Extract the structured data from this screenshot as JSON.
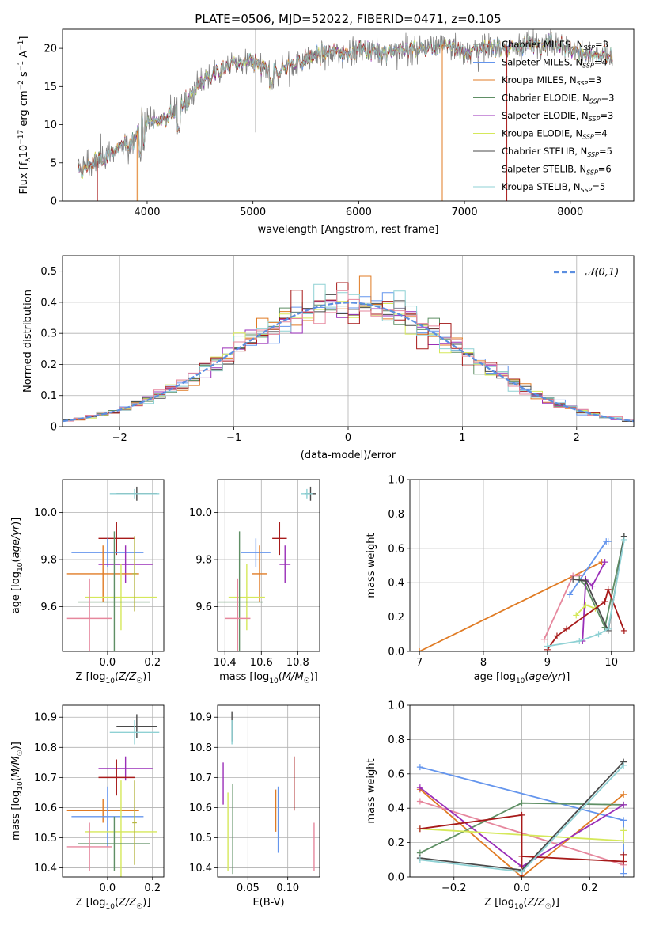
{
  "title": "PLATE=0506, MJD=52022, FIBERID=0471, z=0.105",
  "colors": {
    "blue": "#6495ed",
    "orange": "#e07b24",
    "green": "#5f8f65",
    "purple": "#9a2eb8",
    "lime": "#d5e85a",
    "dkgray": "#4a4a4a",
    "red": "#a71a1a",
    "cyan": "#8fd1d4",
    "pink": "#e6879d",
    "olive": "#b5b540",
    "gray": "#808080"
  },
  "chart_data": [
    {
      "id": "spectrum",
      "type": "line",
      "xlabel": "wavelength [Angstrom, rest frame]",
      "ylabel": "Flux [f_λ10^-17 erg cm^-2 s^-1 A^-1]",
      "xlim": [
        3200,
        8600
      ],
      "ylim": [
        0,
        22.5
      ],
      "xticks": [
        4000,
        5000,
        6000,
        7000,
        8000
      ],
      "yticks": [
        0,
        5,
        10,
        15,
        20
      ],
      "x_range": [
        3350,
        8400
      ],
      "continuum": [
        [
          3350,
          4.0
        ],
        [
          3500,
          5.0
        ],
        [
          3700,
          6.5
        ],
        [
          3850,
          7.5
        ],
        [
          3950,
          10.5
        ],
        [
          4100,
          10.5
        ],
        [
          4300,
          12.0
        ],
        [
          4500,
          15.5
        ],
        [
          4800,
          18.0
        ],
        [
          5000,
          18.2
        ],
        [
          5200,
          16.8
        ],
        [
          5400,
          18.0
        ],
        [
          5600,
          19.0
        ],
        [
          5800,
          19.5
        ],
        [
          6000,
          19.8
        ],
        [
          6300,
          19.5
        ],
        [
          6600,
          20.0
        ],
        [
          6800,
          20.5
        ],
        [
          7000,
          19.5
        ],
        [
          7200,
          20.0
        ],
        [
          7500,
          20.2
        ],
        [
          7800,
          21.0
        ],
        [
          8000,
          20.0
        ],
        [
          8200,
          19.0
        ],
        [
          8400,
          19.0
        ]
      ],
      "legend_loc": "upper right",
      "series": [
        {
          "name": "Chabrier MILES, N_SSP=3",
          "color_key": "gray"
        },
        {
          "name": "Salpeter MILES, N_SSP=4",
          "color_key": "blue"
        },
        {
          "name": "Kroupa MILES, N_SSP=3",
          "color_key": "orange"
        },
        {
          "name": "Chabrier ELODIE, N_SSP=3",
          "color_key": "green"
        },
        {
          "name": "Salpeter ELODIE, N_SSP=3",
          "color_key": "purple"
        },
        {
          "name": "Kroupa ELODIE, N_SSP=4",
          "color_key": "lime"
        },
        {
          "name": "Chabrier STELIB, N_SSP=5",
          "color_key": "dkgray"
        },
        {
          "name": "Salpeter STELIB, N_SSP=6",
          "color_key": "red"
        },
        {
          "name": "Kroupa STELIB, N_SSP=5",
          "color_key": "cyan"
        }
      ]
    },
    {
      "id": "residuals",
      "type": "histogram",
      "xlabel": "(data-model)/error",
      "ylabel": "Normed distribution",
      "xlim": [
        -2.5,
        2.5
      ],
      "ylim": [
        0,
        0.55
      ],
      "xticks": [
        -2,
        -1,
        0,
        1,
        2
      ],
      "yticks": [
        0.0,
        0.1,
        0.2,
        0.3,
        0.4,
        0.5
      ],
      "grid": true,
      "bin_width": 0.1,
      "legend": "𝒩(0,1)",
      "legend_loc": "upper right"
    },
    {
      "id": "age_vs_Z",
      "type": "errorbar",
      "xlabel": "Z [log10(Z/Z☉)]",
      "ylabel": "age  [log10(age/yr)]",
      "xlim": [
        -0.2,
        0.25
      ],
      "ylim": [
        9.41,
        10.14
      ],
      "xticks": [
        0.0,
        0.2
      ],
      "yticks": [
        9.6,
        9.8,
        10.0
      ],
      "grid": true,
      "points": [
        {
          "c": "dkgray",
          "x": 0.13,
          "xe": 0.09,
          "y": 10.08,
          "ye": 0.03
        },
        {
          "c": "cyan",
          "x": 0.12,
          "xe": 0.11,
          "y": 10.08,
          "ye": 0.02
        },
        {
          "c": "red",
          "x": 0.04,
          "xe": 0.08,
          "y": 9.89,
          "ye": 0.07
        },
        {
          "c": "blue",
          "x": 0.0,
          "xe": 0.16,
          "y": 9.83,
          "ye": 0.06
        },
        {
          "c": "purple",
          "x": 0.08,
          "xe": 0.12,
          "y": 9.78,
          "ye": 0.08
        },
        {
          "c": "orange",
          "x": -0.02,
          "xe": 0.16,
          "y": 9.74,
          "ye": 0.12
        },
        {
          "c": "lime",
          "x": 0.06,
          "xe": 0.16,
          "y": 9.64,
          "ye": 0.14
        },
        {
          "c": "green",
          "x": 0.03,
          "xe": 0.16,
          "y": 9.62,
          "ye": 0.3
        },
        {
          "c": "pink",
          "x": -0.08,
          "xe": 0.1,
          "y": 9.55,
          "ye": 0.17
        },
        {
          "c": "olive",
          "x": 0.12,
          "xe": 0.01,
          "y": 9.74,
          "ye": 0.16
        }
      ]
    },
    {
      "id": "age_vs_mass",
      "type": "errorbar",
      "xlabel": "mass [log10(M/M☉)]",
      "ylabel": "",
      "xlim": [
        10.36,
        10.92
      ],
      "ylim": [
        9.41,
        10.14
      ],
      "xticks": [
        10.4,
        10.6,
        10.8
      ],
      "yticks": [
        9.6,
        9.8,
        10.0
      ],
      "grid": true,
      "points": [
        {
          "c": "dkgray",
          "x": 10.87,
          "xe": 0.03,
          "y": 10.08,
          "ye": 0.03
        },
        {
          "c": "cyan",
          "x": 10.85,
          "xe": 0.03,
          "y": 10.08,
          "ye": 0.02
        },
        {
          "c": "red",
          "x": 10.7,
          "xe": 0.04,
          "y": 9.89,
          "ye": 0.07
        },
        {
          "c": "blue",
          "x": 10.57,
          "xe": 0.08,
          "y": 9.83,
          "ye": 0.06
        },
        {
          "c": "purple",
          "x": 10.73,
          "xe": 0.03,
          "y": 9.78,
          "ye": 0.08
        },
        {
          "c": "orange",
          "x": 10.59,
          "xe": 0.04,
          "y": 9.74,
          "ye": 0.12
        },
        {
          "c": "lime",
          "x": 10.52,
          "xe": 0.1,
          "y": 9.64,
          "ye": 0.14
        },
        {
          "c": "green",
          "x": 10.48,
          "xe": 0.13,
          "y": 9.62,
          "ye": 0.3
        },
        {
          "c": "pink",
          "x": 10.47,
          "xe": 0.07,
          "y": 9.55,
          "ye": 0.17
        }
      ]
    },
    {
      "id": "weight_vs_age",
      "type": "line",
      "xlabel": "age  [log10(age/yr)]",
      "ylabel": "mass weight",
      "xlim": [
        6.85,
        10.35
      ],
      "ylim": [
        0,
        1
      ],
      "xticks": [
        7,
        8,
        9,
        10
      ],
      "yticks": [
        0.0,
        0.2,
        0.4,
        0.6,
        0.8,
        1.0
      ],
      "grid": true,
      "series": [
        {
          "c": "orange",
          "x": [
            7.0,
            9.85
          ],
          "y": [
            0.0,
            0.52
          ]
        },
        {
          "c": "blue",
          "x": [
            9.35,
            9.92,
            9.95
          ],
          "y": [
            0.33,
            0.64,
            0.64
          ]
        },
        {
          "c": "pink",
          "x": [
            8.95,
            9.4,
            9.5
          ],
          "y": [
            0.07,
            0.44,
            0.44
          ]
        },
        {
          "c": "green",
          "x": [
            9.5,
            9.6,
            9.9,
            10.2
          ],
          "y": [
            0.42,
            0.38,
            0.14,
            0.67
          ]
        },
        {
          "c": "purple",
          "x": [
            9.55,
            9.6,
            9.7,
            9.9
          ],
          "y": [
            0.06,
            0.42,
            0.38,
            0.52
          ]
        },
        {
          "c": "lime",
          "x": [
            9.45,
            9.6,
            9.75
          ],
          "y": [
            0.21,
            0.27,
            0.25
          ]
        },
        {
          "c": "dkgray",
          "x": [
            9.4,
            9.6,
            9.95,
            10.2
          ],
          "y": [
            0.42,
            0.41,
            0.12,
            0.67
          ]
        },
        {
          "c": "red",
          "x": [
            9.0,
            9.15,
            9.3,
            9.9,
            9.95,
            10.2
          ],
          "y": [
            0.01,
            0.09,
            0.13,
            0.29,
            0.36,
            0.12
          ]
        },
        {
          "c": "cyan",
          "x": [
            9.0,
            9.5,
            9.8,
            9.95,
            10.2
          ],
          "y": [
            0.03,
            0.06,
            0.1,
            0.13,
            0.65
          ]
        }
      ]
    },
    {
      "id": "mass_vs_Z",
      "type": "errorbar",
      "xlabel": "Z [log10(Z/Z☉)]",
      "ylabel": "mass [log10(M/M☉)]",
      "xlim": [
        -0.2,
        0.25
      ],
      "ylim": [
        10.37,
        10.94
      ],
      "xticks": [
        0.0,
        0.2
      ],
      "yticks": [
        10.4,
        10.5,
        10.6,
        10.7,
        10.8,
        10.9
      ],
      "grid": true,
      "points": [
        {
          "c": "dkgray",
          "x": 0.13,
          "xe": 0.09,
          "y": 10.87,
          "ye": 0.04
        },
        {
          "c": "cyan",
          "x": 0.12,
          "xe": 0.11,
          "y": 10.85,
          "ye": 0.04
        },
        {
          "c": "purple",
          "x": 0.08,
          "xe": 0.12,
          "y": 10.73,
          "ye": 0.04
        },
        {
          "c": "red",
          "x": 0.04,
          "xe": 0.08,
          "y": 10.7,
          "ye": 0.06
        },
        {
          "c": "orange",
          "x": -0.02,
          "xe": 0.16,
          "y": 10.59,
          "ye": 0.04
        },
        {
          "c": "blue",
          "x": 0.0,
          "xe": 0.16,
          "y": 10.57,
          "ye": 0.1
        },
        {
          "c": "lime",
          "x": 0.06,
          "xe": 0.16,
          "y": 10.52,
          "ye": 0.17
        },
        {
          "c": "green",
          "x": 0.03,
          "xe": 0.16,
          "y": 10.48,
          "ye": 0.09
        },
        {
          "c": "pink",
          "x": -0.08,
          "xe": 0.1,
          "y": 10.47,
          "ye": 0.08
        },
        {
          "c": "olive",
          "x": 0.12,
          "xe": 0.01,
          "y": 10.55,
          "ye": 0.14
        }
      ]
    },
    {
      "id": "mass_vs_ebv",
      "type": "errorbar",
      "xlabel": "E(B-V)",
      "ylabel": "",
      "xlim": [
        0.012,
        0.14
      ],
      "ylim": [
        10.37,
        10.94
      ],
      "xticks": [
        0.05,
        0.1
      ],
      "yticks": [
        10.4,
        10.5,
        10.6,
        10.7,
        10.8,
        10.9
      ],
      "grid": true,
      "points": [
        {
          "c": "dkgray",
          "x": 0.03,
          "y": 10.87,
          "ye": 0.05
        },
        {
          "c": "cyan",
          "x": 0.03,
          "y": 10.85,
          "ye": 0.04
        },
        {
          "c": "purple",
          "x": 0.019,
          "y": 10.68,
          "ye": 0.07
        },
        {
          "c": "lime",
          "x": 0.025,
          "y": 10.52,
          "ye": 0.13
        },
        {
          "c": "green",
          "x": 0.031,
          "y": 10.53,
          "ye": 0.15
        },
        {
          "c": "blue",
          "x": 0.088,
          "y": 10.56,
          "ye": 0.11
        },
        {
          "c": "orange",
          "x": 0.085,
          "y": 10.59,
          "ye": 0.07
        },
        {
          "c": "red",
          "x": 0.108,
          "y": 10.68,
          "ye": 0.09
        },
        {
          "c": "pink",
          "x": 0.133,
          "y": 10.47,
          "ye": 0.08
        }
      ]
    },
    {
      "id": "weight_vs_Z",
      "type": "line",
      "xlabel": "Z [log10(Z/Z☉)]",
      "ylabel": "mass weight",
      "xlim": [
        -0.33,
        0.33
      ],
      "ylim": [
        0,
        1
      ],
      "xticks": [
        -0.2,
        0.0,
        0.2
      ],
      "yticks": [
        0.0,
        0.2,
        0.4,
        0.6,
        0.8,
        1.0
      ],
      "grid": true,
      "series": [
        {
          "c": "blue",
          "x": [
            -0.3,
            0.3,
            0.3
          ],
          "y": [
            0.64,
            0.33,
            0.02
          ]
        },
        {
          "c": "orange",
          "x": [
            -0.3,
            0.0,
            0.3
          ],
          "y": [
            0.51,
            0.0,
            0.48
          ]
        },
        {
          "c": "pink",
          "x": [
            -0.3,
            0.3
          ],
          "y": [
            0.44,
            0.07
          ]
        },
        {
          "c": "green",
          "x": [
            -0.3,
            0.0,
            0.3
          ],
          "y": [
            0.14,
            0.43,
            0.42
          ]
        },
        {
          "c": "purple",
          "x": [
            -0.3,
            0.0,
            0.3
          ],
          "y": [
            0.52,
            0.06,
            0.42
          ]
        },
        {
          "c": "lime",
          "x": [
            -0.3,
            0.3,
            0.3
          ],
          "y": [
            0.28,
            0.21,
            0.27
          ]
        },
        {
          "c": "dkgray",
          "x": [
            -0.3,
            0.0,
            0.3
          ],
          "y": [
            0.11,
            0.04,
            0.67
          ]
        },
        {
          "c": "red",
          "x": [
            -0.3,
            0.0,
            0.0,
            0.0,
            0.3,
            0.3
          ],
          "y": [
            0.28,
            0.36,
            0.01,
            0.12,
            0.09,
            0.13
          ]
        },
        {
          "c": "cyan",
          "x": [
            -0.3,
            0.0,
            0.3
          ],
          "y": [
            0.1,
            0.03,
            0.65
          ]
        }
      ]
    }
  ]
}
